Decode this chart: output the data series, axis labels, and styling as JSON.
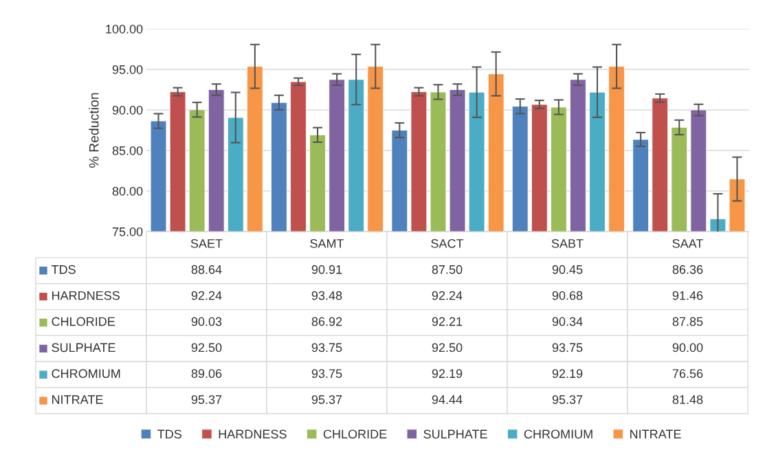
{
  "chart_data": {
    "type": "bar",
    "ylabel": "% Reduction",
    "categories": [
      "SAET",
      "SAMT",
      "SACT",
      "SABT",
      "SAAT"
    ],
    "series": [
      {
        "name": "TDS",
        "color": "#4f81bd",
        "values": [
          88.64,
          90.91,
          87.5,
          90.45,
          86.36
        ],
        "value_labels": [
          "88.64",
          "90.91",
          "87.50",
          "90.45",
          "86.36"
        ],
        "errors": [
          0.9,
          0.9,
          0.9,
          0.9,
          0.85
        ]
      },
      {
        "name": "HARDNESS",
        "color": "#c0504d",
        "values": [
          92.24,
          93.48,
          92.24,
          90.68,
          91.46
        ],
        "value_labels": [
          "92.24",
          "93.48",
          "92.24",
          "90.68",
          "91.46"
        ],
        "errors": [
          0.5,
          0.45,
          0.5,
          0.5,
          0.5
        ]
      },
      {
        "name": "CHLORIDE",
        "color": "#9bbb59",
        "values": [
          90.03,
          86.92,
          92.21,
          90.34,
          87.85
        ],
        "value_labels": [
          "90.03",
          "86.92",
          "92.21",
          "90.34",
          "87.85"
        ],
        "errors": [
          0.9,
          0.9,
          0.9,
          0.9,
          0.9
        ]
      },
      {
        "name": "SULPHATE",
        "color": "#8064a2",
        "values": [
          92.5,
          93.75,
          92.5,
          93.75,
          90.0
        ],
        "value_labels": [
          "92.50",
          "93.75",
          "92.50",
          "93.75",
          "90.00"
        ],
        "errors": [
          0.7,
          0.7,
          0.7,
          0.7,
          0.7
        ]
      },
      {
        "name": "CHROMIUM",
        "color": "#4bacc6",
        "values": [
          89.06,
          93.75,
          92.19,
          92.19,
          76.56
        ],
        "value_labels": [
          "89.06",
          "93.75",
          "92.19",
          "92.19",
          "76.56"
        ],
        "errors": [
          3.1,
          3.1,
          3.1,
          3.1,
          3.1
        ]
      },
      {
        "name": "NITRATE",
        "color": "#f79646",
        "values": [
          95.37,
          95.37,
          94.44,
          95.37,
          81.48
        ],
        "value_labels": [
          "95.37",
          "95.37",
          "94.44",
          "95.37",
          "81.48"
        ],
        "errors": [
          2.7,
          2.7,
          2.7,
          2.7,
          2.7
        ]
      }
    ],
    "ylim": [
      75,
      100
    ],
    "yticks": [
      {
        "value": 75,
        "label": "75.00"
      },
      {
        "value": 80,
        "label": "80.00"
      },
      {
        "value": 85,
        "label": "85.00"
      },
      {
        "value": 90,
        "label": "90.00"
      },
      {
        "value": 95,
        "label": "95.00"
      },
      {
        "value": 100,
        "label": "100.00"
      }
    ],
    "grid": "y",
    "legend": "bottom"
  }
}
